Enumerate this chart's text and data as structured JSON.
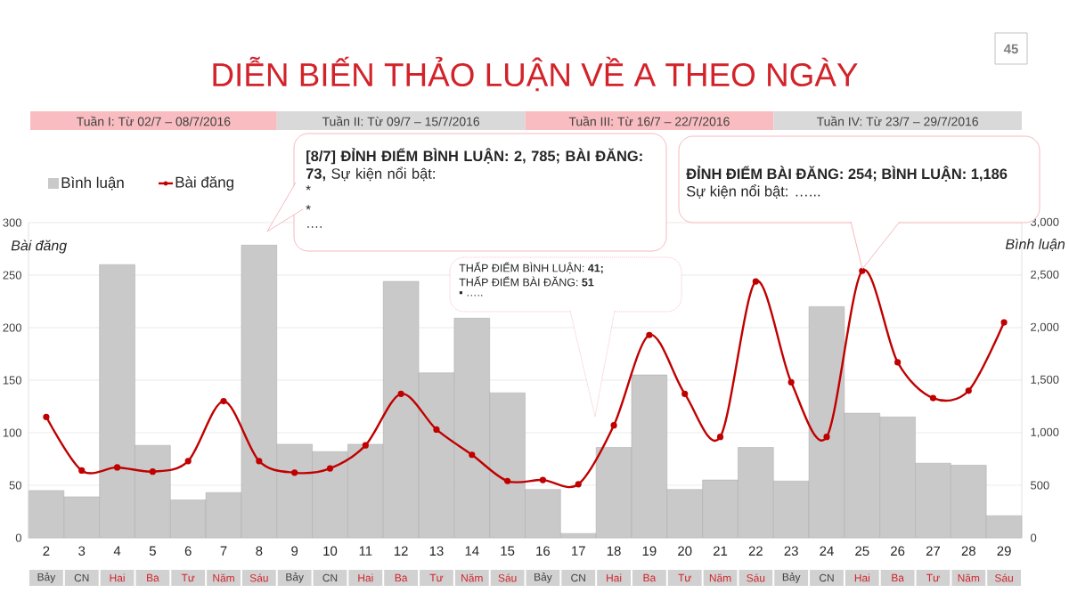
{
  "chart_data": {
    "type": "bar",
    "title": "DIỄN BIẾN THẢO LUẬN VỀ A THEO NGÀY",
    "ylabel": "Bài đăng",
    "y2label": "Bình luận",
    "categories": [
      "2",
      "3",
      "4",
      "5",
      "6",
      "7",
      "8",
      "9",
      "10",
      "11",
      "12",
      "13",
      "14",
      "15",
      "16",
      "17",
      "18",
      "19",
      "20",
      "21",
      "22",
      "23",
      "24",
      "25",
      "26",
      "27",
      "28",
      "29"
    ],
    "series": [
      {
        "name": "Bình luận",
        "axis": "y2",
        "color": "#c9c9c9",
        "values": [
          450,
          390,
          2600,
          880,
          360,
          430,
          2785,
          890,
          820,
          890,
          2440,
          1570,
          2090,
          1380,
          460,
          41,
          860,
          1550,
          460,
          550,
          860,
          540,
          2200,
          1186,
          1150,
          710,
          690,
          210
        ]
      },
      {
        "name": "Bài đăng",
        "type": "line",
        "color": "#c00000",
        "values": [
          115,
          64,
          67,
          63,
          73,
          130,
          73,
          62,
          66,
          88,
          137,
          103,
          79,
          54,
          55,
          51,
          107,
          193,
          137,
          96,
          244,
          148,
          96,
          254,
          167,
          133,
          140,
          205
        ]
      }
    ],
    "ylim": [
      0,
      300
    ],
    "yticks": [
      0,
      50,
      100,
      150,
      200,
      250,
      300
    ],
    "y2lim": [
      0,
      3000
    ],
    "y2ticks": [
      0,
      500,
      {
        "value": 1000,
        "label": "1,000"
      },
      {
        "value": 1500,
        "label": "1,500"
      },
      {
        "value": 2000,
        "label": "2,000"
      },
      {
        "value": 2500,
        "label": "2,500"
      },
      {
        "value": 3000,
        "label": "3,000"
      }
    ],
    "grid": "y",
    "legend": "top left",
    "marker": "circle",
    "annotations": [
      "45",
      "Tuần I: Từ 02/7 – 08/7/2016",
      "Tuần II: Từ 09/7 – 15/7/2016",
      "Tuần III: Từ 16/7 – 22/7/2016",
      "Tuần IV: Từ 23/7 – 29/7/2016",
      "**[8/7] ĐỈNH ĐIỂM BÌNH LUẬN: 2, 785; BÀI ĐĂNG: 73,** Sự kiện nổi bật:",
      "*",
      "*",
      "….",
      "**ĐỈNH ĐIỂM BÀI ĐĂNG: 254; BÌNH LUẬN: 1,186**",
      "Sự kiện nổi bật: …...",
      "THẤP ĐIỂM BÌNH LUẬN: **41;**",
      "THẤP ĐIỂM BÀI ĐĂNG: **51**",
      "▪ …..",
      "Bảy",
      "CN",
      "Hai",
      "Ba",
      "Tư",
      "Năm",
      "Sáu",
      "Bảy",
      "CN",
      "Hai",
      "Ba",
      "Tư",
      "Năm",
      "Sáu",
      "Bảy",
      "CN",
      "Hai",
      "Ba",
      "Tư",
      "Năm",
      "Sáu",
      "Bảy",
      "CN",
      "Hai",
      "Ba",
      "Tư",
      "Năm",
      "Sáu"
    ]
  }
}
